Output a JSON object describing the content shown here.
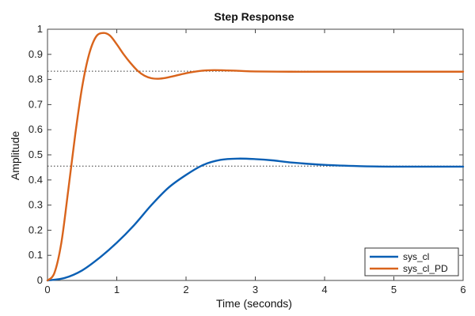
{
  "chart_data": {
    "type": "line",
    "title": "Step Response",
    "xlabel": "Time (seconds)",
    "ylabel": "Amplitude",
    "xlim": [
      0,
      6
    ],
    "ylim": [
      0,
      1
    ],
    "x_ticks": [
      0,
      1,
      2,
      3,
      4,
      5,
      6
    ],
    "y_ticks": [
      0,
      0.1,
      0.2,
      0.3,
      0.4,
      0.5,
      0.6,
      0.7,
      0.8,
      0.9,
      1
    ],
    "x_tick_labels": [
      "0",
      "1",
      "2",
      "3",
      "4",
      "5",
      "6"
    ],
    "y_tick_labels": [
      "0",
      "0.1",
      "0.2",
      "0.3",
      "0.4",
      "0.5",
      "0.6",
      "0.7",
      "0.8",
      "0.9",
      "1"
    ],
    "grid": false,
    "legend_position": "bottom-right",
    "series": [
      {
        "name": "sys_cl",
        "color": "#0a5fb4",
        "x": [
          0,
          0.25,
          0.5,
          0.75,
          1.0,
          1.25,
          1.5,
          1.75,
          2.0,
          2.25,
          2.5,
          2.75,
          3.0,
          3.25,
          3.5,
          4.0,
          4.5,
          5.0,
          5.5,
          6.0
        ],
        "y": [
          0,
          0.01,
          0.04,
          0.09,
          0.15,
          0.22,
          0.3,
          0.37,
          0.42,
          0.46,
          0.48,
          0.485,
          0.483,
          0.478,
          0.47,
          0.46,
          0.455,
          0.453,
          0.453,
          0.453
        ],
        "final_value": 0.455
      },
      {
        "name": "sys_cl_PD",
        "color": "#d9641c",
        "x": [
          0,
          0.1,
          0.2,
          0.3,
          0.4,
          0.5,
          0.6,
          0.7,
          0.8,
          0.9,
          1.0,
          1.1,
          1.2,
          1.3,
          1.4,
          1.5,
          1.6,
          1.7,
          1.8,
          2.0,
          2.2,
          2.4,
          2.6,
          2.8,
          3.0,
          3.5,
          4.0,
          5.0,
          6.0
        ],
        "y": [
          0,
          0.03,
          0.15,
          0.36,
          0.58,
          0.77,
          0.9,
          0.97,
          0.985,
          0.975,
          0.94,
          0.9,
          0.865,
          0.835,
          0.815,
          0.805,
          0.803,
          0.806,
          0.812,
          0.825,
          0.834,
          0.837,
          0.836,
          0.834,
          0.832,
          0.831,
          0.831,
          0.831,
          0.831
        ],
        "final_value": 0.833
      }
    ]
  },
  "colors": {
    "axis": "#444444",
    "reference_line": "#333333",
    "background": "#ffffff"
  }
}
